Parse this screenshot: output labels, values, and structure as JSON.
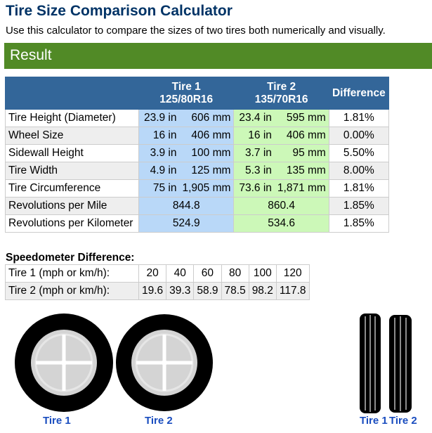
{
  "header": {
    "title": "Tire Size Comparison Calculator",
    "subtitle": "Use this calculator to compare the sizes of two tires both numerically and visually."
  },
  "result": {
    "heading": "Result",
    "columns": {
      "tire1_name": "Tire 1",
      "tire1_size": "125/80R16",
      "tire2_name": "Tire 2",
      "tire2_size": "135/70R16",
      "difference": "Difference"
    },
    "rows": [
      {
        "label": "Tire Height (Diameter)",
        "t1_in": "23.9 in",
        "t1_mm": "606 mm",
        "t2_in": "23.4 in",
        "t2_mm": "595 mm",
        "diff": "1.81%"
      },
      {
        "label": "Wheel Size",
        "t1_in": "16 in",
        "t1_mm": "406 mm",
        "t2_in": "16 in",
        "t2_mm": "406 mm",
        "diff": "0.00%"
      },
      {
        "label": "Sidewall Height",
        "t1_in": "3.9 in",
        "t1_mm": "100 mm",
        "t2_in": "3.7 in",
        "t2_mm": "95 mm",
        "diff": "5.50%"
      },
      {
        "label": "Tire Width",
        "t1_in": "4.9 in",
        "t1_mm": "125 mm",
        "t2_in": "5.3 in",
        "t2_mm": "135 mm",
        "diff": "8.00%"
      },
      {
        "label": "Tire Circumference",
        "t1_in": "75 in",
        "t1_mm": "1,905 mm",
        "t2_in": "73.6 in",
        "t2_mm": "1,871 mm",
        "diff": "1.81%"
      }
    ],
    "rev_rows": [
      {
        "label": "Revolutions per Mile",
        "t1": "844.8",
        "t2": "860.4",
        "diff": "1.85%"
      },
      {
        "label": "Revolutions per Kilometer",
        "t1": "524.9",
        "t2": "534.6",
        "diff": "1.85%"
      }
    ]
  },
  "speedometer": {
    "title": "Speedometer Difference:",
    "row1_label": "Tire 1 (mph or km/h):",
    "row1": [
      "20",
      "40",
      "60",
      "80",
      "100",
      "120"
    ],
    "row2_label": "Tire 2 (mph or km/h):",
    "row2": [
      "19.6",
      "39.3",
      "58.9",
      "78.5",
      "98.2",
      "117.8"
    ]
  },
  "visual": {
    "side_tire1_label": "Tire 1",
    "side_tire2_label": "Tire 2",
    "front_tire1_label": "Tire 1",
    "front_tire2_label": "Tire 2",
    "colors": {
      "rubber": "#000000",
      "rim": "#d4d4d4",
      "rim_edge": "#e4e4e4",
      "label": "#1a4dbf"
    }
  }
}
